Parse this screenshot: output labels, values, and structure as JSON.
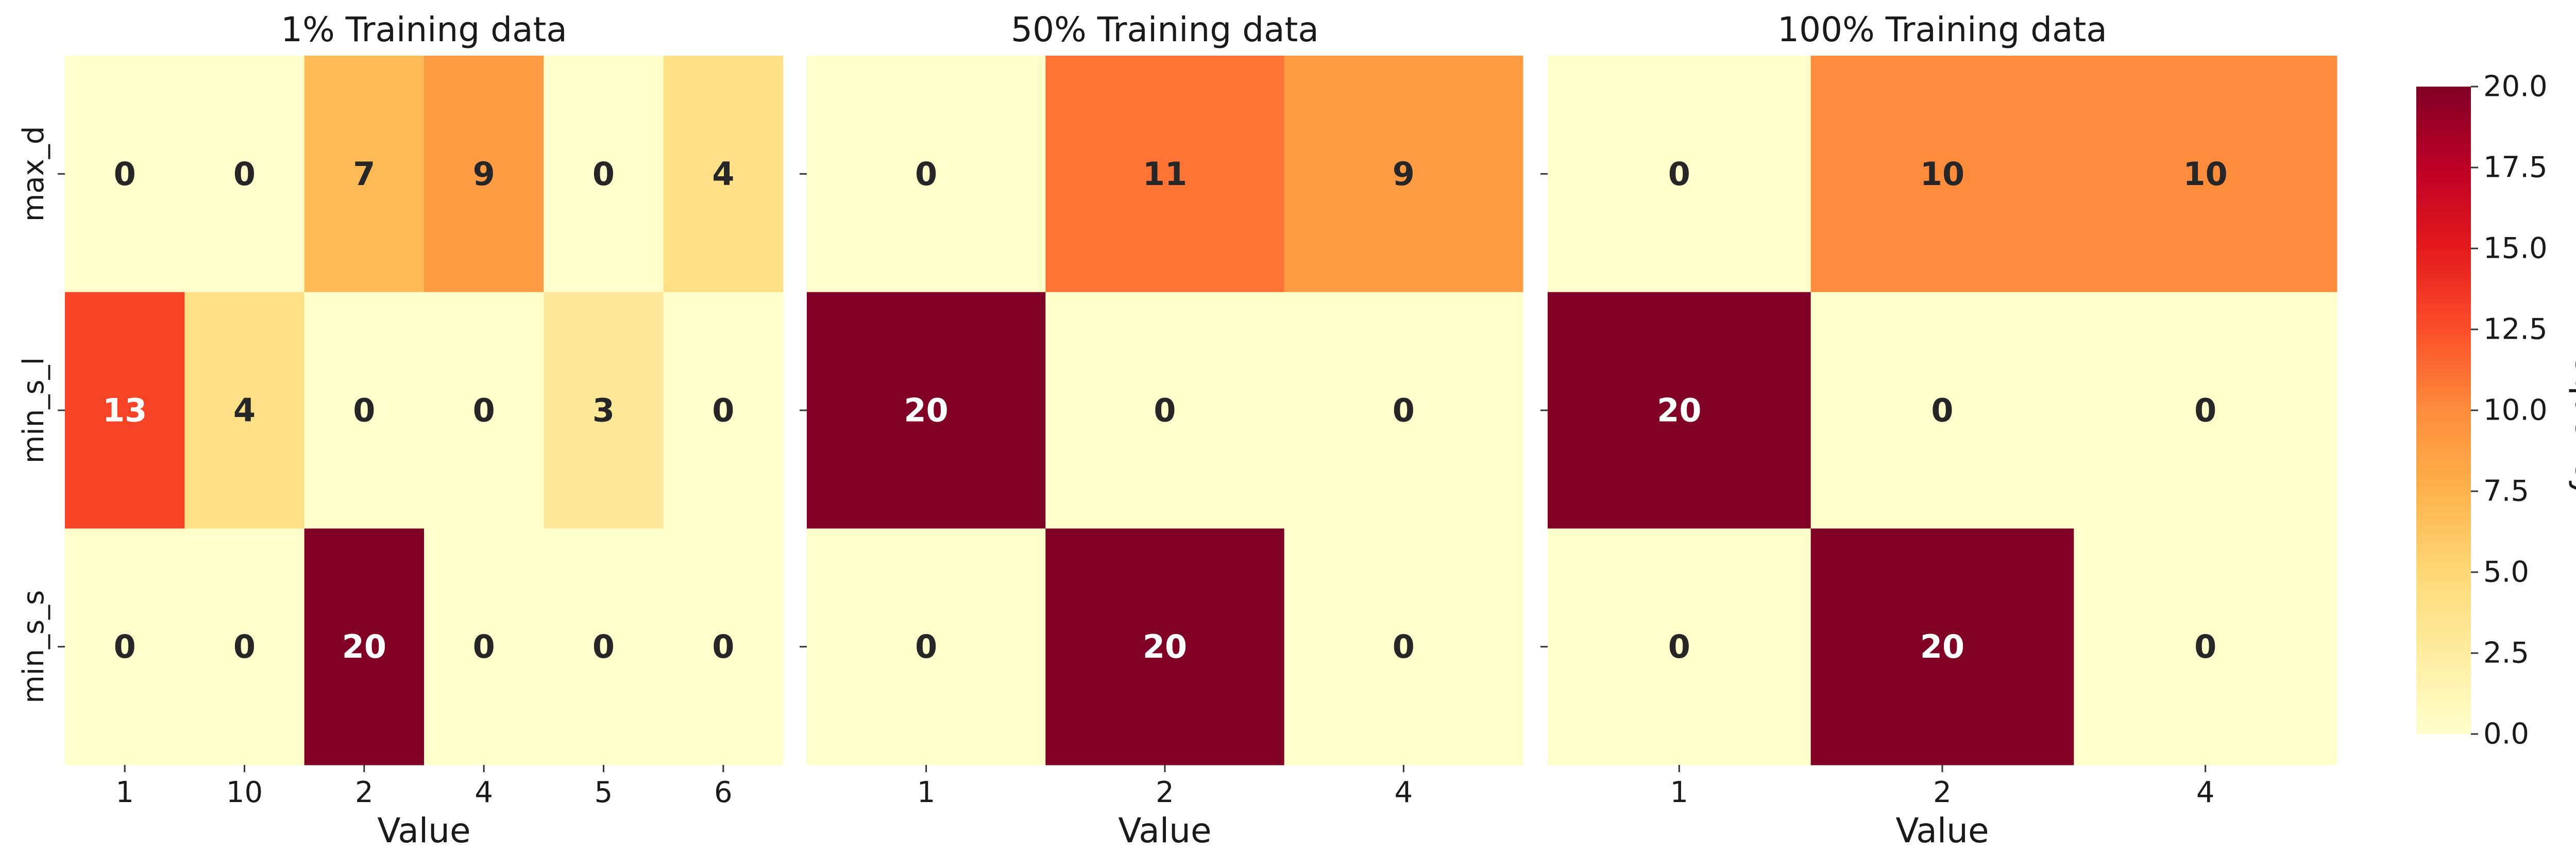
{
  "chart_data": [
    {
      "type": "heatmap",
      "title": "1% Training data",
      "xlabel": "Value",
      "ylabel": "",
      "x_categories": [
        "1",
        "10",
        "2",
        "4",
        "5",
        "6"
      ],
      "y_categories": [
        "max_d",
        "min_s_l",
        "min_s_s"
      ],
      "values": [
        [
          0,
          0,
          7,
          9,
          0,
          4
        ],
        [
          13,
          4,
          0,
          0,
          3,
          0
        ],
        [
          0,
          0,
          20,
          0,
          0,
          0
        ]
      ],
      "annotations": true
    },
    {
      "type": "heatmap",
      "title": "50% Training data",
      "xlabel": "Value",
      "ylabel": "",
      "x_categories": [
        "1",
        "2",
        "4"
      ],
      "y_categories": [
        "max_d",
        "min_s_l",
        "min_s_s"
      ],
      "values": [
        [
          0,
          11,
          9
        ],
        [
          20,
          0,
          0
        ],
        [
          0,
          20,
          0
        ]
      ],
      "annotations": true
    },
    {
      "type": "heatmap",
      "title": "100% Training data",
      "xlabel": "Value",
      "ylabel": "",
      "x_categories": [
        "1",
        "2",
        "4"
      ],
      "y_categories": [
        "max_d",
        "min_s_l",
        "min_s_s"
      ],
      "values": [
        [
          0,
          10,
          10
        ],
        [
          20,
          0,
          0
        ],
        [
          0,
          20,
          0
        ]
      ],
      "annotations": true
    }
  ],
  "colorbar": {
    "label": "Frequency",
    "vmin": 0,
    "vmax": 20,
    "ticks": [
      "0.0",
      "2.5",
      "5.0",
      "7.5",
      "10.0",
      "12.5",
      "15.0",
      "17.5",
      "20.0"
    ],
    "colormap": "YlOrRd",
    "colormap_stops": [
      "#ffffcc",
      "#ffeda0",
      "#fed976",
      "#feb24c",
      "#fd8d3c",
      "#fc4e2a",
      "#e31a1c",
      "#bd0026",
      "#800026"
    ]
  }
}
